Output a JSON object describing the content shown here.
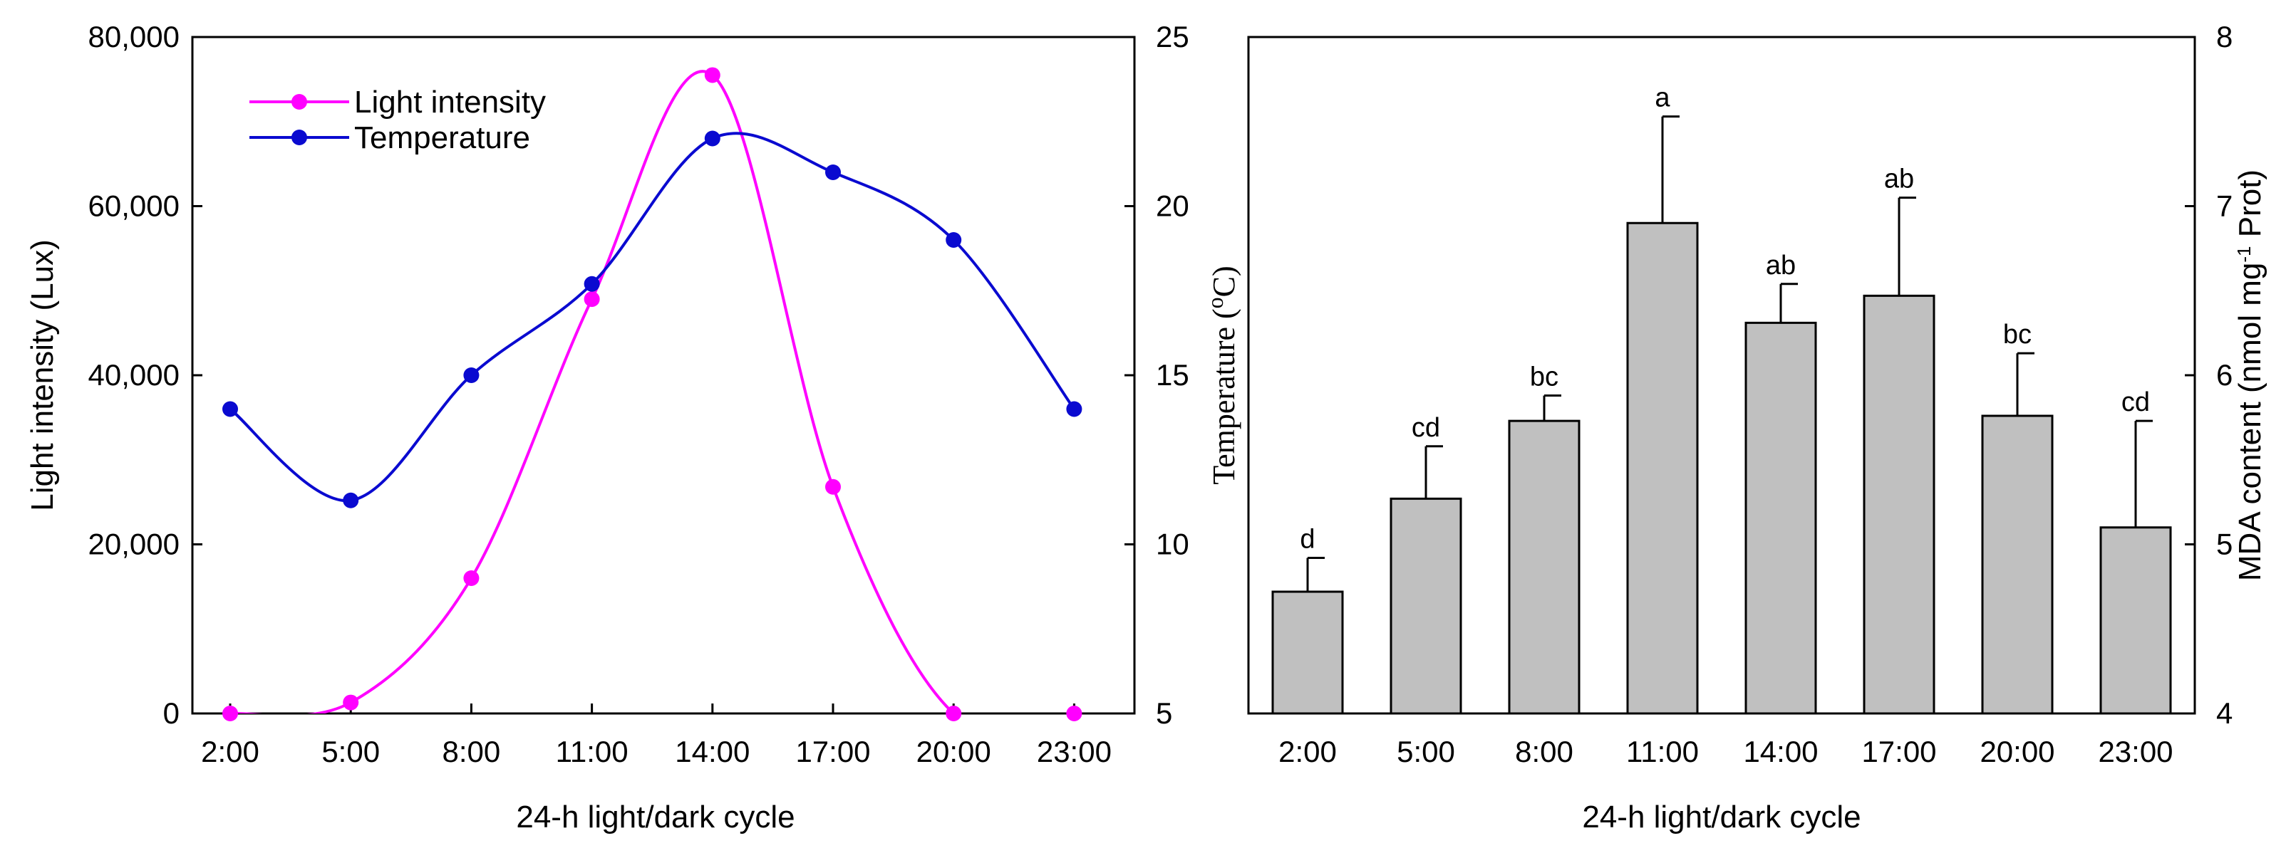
{
  "chart_data": [
    {
      "type": "line",
      "title": "",
      "xlabel": "24-h light/dark cycle",
      "ylabel": "Light intensity (Lux)",
      "y2label_main": "Temperature (",
      "y2label_unit": "C)",
      "y2label_degree": "o",
      "categories": [
        "2:00",
        "5:00",
        "8:00",
        "11:00",
        "14:00",
        "17:00",
        "20:00",
        "23:00"
      ],
      "y_ticks": [
        "0",
        "20,000",
        "40,000",
        "60,000",
        "80,000"
      ],
      "y2_ticks": [
        "5",
        "10",
        "15",
        "20",
        "25"
      ],
      "ylim": [
        0,
        80000
      ],
      "y2lim": [
        5,
        25
      ],
      "legend_position": "top-left",
      "series": [
        {
          "name": "Light intensity",
          "axis": "left",
          "color": "#ff00ff",
          "x": [
            2,
            5,
            8,
            11,
            14,
            17,
            20,
            23
          ],
          "values": [
            0,
            1300,
            16000,
            49000,
            75500,
            26800,
            0,
            0
          ]
        },
        {
          "name": "Temperature",
          "axis": "right",
          "color": "#0a0ad0",
          "x": [
            2,
            5,
            8,
            11,
            14,
            17,
            20,
            23
          ],
          "values": [
            14,
            11.3,
            15,
            17.7,
            22,
            21,
            19,
            14
          ]
        }
      ]
    },
    {
      "type": "bar",
      "title": "",
      "xlabel": "24-h light/dark cycle",
      "ylabel_main": "MDA content (nmol mg",
      "ylabel_sup": "-1",
      "ylabel_tail": " Prot)",
      "categories": [
        "2:00",
        "5:00",
        "8:00",
        "11:00",
        "14:00",
        "17:00",
        "20:00",
        "23:00"
      ],
      "values": [
        4.72,
        5.27,
        5.73,
        6.9,
        6.31,
        6.47,
        5.76,
        5.1
      ],
      "errors": [
        0.2,
        0.31,
        0.15,
        0.63,
        0.23,
        0.58,
        0.37,
        0.63
      ],
      "labels": [
        "d",
        "cd",
        "bc",
        "a",
        "ab",
        "ab",
        "bc",
        "cd"
      ],
      "y_ticks": [
        "4",
        "5",
        "6",
        "7",
        "8"
      ],
      "ylim": [
        4,
        8
      ],
      "bar_color": "#c0c0c0",
      "axis_position": "right"
    }
  ]
}
